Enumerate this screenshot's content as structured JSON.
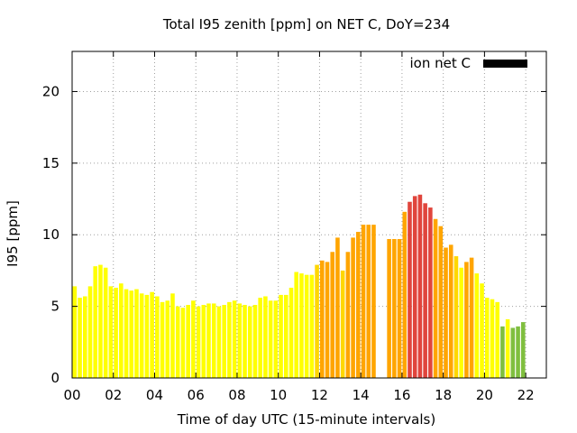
{
  "chart_data": {
    "type": "bar",
    "title": "Total I95 zenith [ppm] on NET C, DoY=234",
    "xlabel": "Time of day UTC (15-minute intervals)",
    "ylabel": "I95 [ppm]",
    "xlim": [
      0,
      23
    ],
    "ylim": [
      0,
      22.8
    ],
    "xticks": [
      "00",
      "02",
      "04",
      "06",
      "08",
      "10",
      "12",
      "14",
      "16",
      "18",
      "20",
      "22"
    ],
    "yticks": [
      "0",
      "5",
      "10",
      "15",
      "20"
    ],
    "grid": true,
    "legend": {
      "label": "ion net C",
      "color": "#000000",
      "position": "top-right"
    },
    "bar_width_hours": 0.2,
    "colors": {
      "yellow": "#ffff00",
      "amber": "#ffd700",
      "orange": "#ffa500",
      "red": "#e0453c",
      "green": "#7fbf3f",
      "yellowgreen": "#b2d235"
    },
    "bars": [
      {
        "x": 0.125,
        "y": 6.4,
        "c": "yellow"
      },
      {
        "x": 0.375,
        "y": 5.6,
        "c": "yellow"
      },
      {
        "x": 0.625,
        "y": 5.7,
        "c": "yellow"
      },
      {
        "x": 0.875,
        "y": 6.4,
        "c": "yellow"
      },
      {
        "x": 1.125,
        "y": 7.8,
        "c": "yellow"
      },
      {
        "x": 1.375,
        "y": 7.9,
        "c": "yellow"
      },
      {
        "x": 1.625,
        "y": 7.7,
        "c": "yellow"
      },
      {
        "x": 1.875,
        "y": 6.4,
        "c": "yellow"
      },
      {
        "x": 2.125,
        "y": 6.3,
        "c": "yellow"
      },
      {
        "x": 2.375,
        "y": 6.6,
        "c": "yellow"
      },
      {
        "x": 2.625,
        "y": 6.2,
        "c": "yellow"
      },
      {
        "x": 2.875,
        "y": 6.1,
        "c": "yellow"
      },
      {
        "x": 3.125,
        "y": 6.2,
        "c": "yellow"
      },
      {
        "x": 3.375,
        "y": 5.9,
        "c": "yellow"
      },
      {
        "x": 3.625,
        "y": 5.8,
        "c": "yellow"
      },
      {
        "x": 3.875,
        "y": 6.0,
        "c": "yellow"
      },
      {
        "x": 4.125,
        "y": 5.7,
        "c": "yellow"
      },
      {
        "x": 4.375,
        "y": 5.3,
        "c": "yellow"
      },
      {
        "x": 4.625,
        "y": 5.4,
        "c": "yellow"
      },
      {
        "x": 4.875,
        "y": 5.9,
        "c": "yellow"
      },
      {
        "x": 5.125,
        "y": 5.0,
        "c": "yellow"
      },
      {
        "x": 5.375,
        "y": 4.9,
        "c": "yellow"
      },
      {
        "x": 5.625,
        "y": 5.1,
        "c": "yellow"
      },
      {
        "x": 5.875,
        "y": 5.4,
        "c": "yellow"
      },
      {
        "x": 6.125,
        "y": 5.0,
        "c": "yellow"
      },
      {
        "x": 6.375,
        "y": 5.1,
        "c": "yellow"
      },
      {
        "x": 6.625,
        "y": 5.2,
        "c": "yellow"
      },
      {
        "x": 6.875,
        "y": 5.2,
        "c": "yellow"
      },
      {
        "x": 7.125,
        "y": 5.0,
        "c": "yellow"
      },
      {
        "x": 7.375,
        "y": 5.1,
        "c": "yellow"
      },
      {
        "x": 7.625,
        "y": 5.3,
        "c": "yellow"
      },
      {
        "x": 7.875,
        "y": 5.4,
        "c": "yellow"
      },
      {
        "x": 8.125,
        "y": 5.2,
        "c": "yellow"
      },
      {
        "x": 8.375,
        "y": 5.1,
        "c": "yellow"
      },
      {
        "x": 8.625,
        "y": 5.0,
        "c": "yellow"
      },
      {
        "x": 8.875,
        "y": 5.1,
        "c": "yellow"
      },
      {
        "x": 9.125,
        "y": 5.6,
        "c": "yellow"
      },
      {
        "x": 9.375,
        "y": 5.7,
        "c": "yellow"
      },
      {
        "x": 9.625,
        "y": 5.4,
        "c": "yellow"
      },
      {
        "x": 9.875,
        "y": 5.4,
        "c": "yellow"
      },
      {
        "x": 10.125,
        "y": 5.8,
        "c": "yellow"
      },
      {
        "x": 10.375,
        "y": 5.8,
        "c": "yellow"
      },
      {
        "x": 10.625,
        "y": 6.3,
        "c": "yellow"
      },
      {
        "x": 10.875,
        "y": 7.4,
        "c": "yellow"
      },
      {
        "x": 11.125,
        "y": 7.3,
        "c": "yellow"
      },
      {
        "x": 11.375,
        "y": 7.2,
        "c": "yellow"
      },
      {
        "x": 11.625,
        "y": 7.2,
        "c": "yellow"
      },
      {
        "x": 11.875,
        "y": 7.9,
        "c": "amber"
      },
      {
        "x": 12.125,
        "y": 8.2,
        "c": "orange"
      },
      {
        "x": 12.375,
        "y": 8.1,
        "c": "orange"
      },
      {
        "x": 12.625,
        "y": 8.8,
        "c": "orange"
      },
      {
        "x": 12.875,
        "y": 9.8,
        "c": "orange"
      },
      {
        "x": 13.125,
        "y": 7.5,
        "c": "amber"
      },
      {
        "x": 13.375,
        "y": 8.8,
        "c": "orange"
      },
      {
        "x": 13.625,
        "y": 9.8,
        "c": "orange"
      },
      {
        "x": 13.875,
        "y": 10.2,
        "c": "orange"
      },
      {
        "x": 14.125,
        "y": 10.7,
        "c": "orange"
      },
      {
        "x": 14.375,
        "y": 10.7,
        "c": "orange"
      },
      {
        "x": 14.625,
        "y": 10.7,
        "c": "orange"
      },
      {
        "x": 15.375,
        "y": 9.7,
        "c": "orange"
      },
      {
        "x": 15.625,
        "y": 9.7,
        "c": "orange"
      },
      {
        "x": 15.875,
        "y": 9.7,
        "c": "orange"
      },
      {
        "x": 16.125,
        "y": 11.6,
        "c": "orange"
      },
      {
        "x": 16.375,
        "y": 12.3,
        "c": "red"
      },
      {
        "x": 16.625,
        "y": 12.7,
        "c": "red"
      },
      {
        "x": 16.875,
        "y": 12.8,
        "c": "red"
      },
      {
        "x": 17.125,
        "y": 12.2,
        "c": "red"
      },
      {
        "x": 17.375,
        "y": 11.9,
        "c": "red"
      },
      {
        "x": 17.625,
        "y": 11.1,
        "c": "orange"
      },
      {
        "x": 17.875,
        "y": 10.6,
        "c": "orange"
      },
      {
        "x": 18.125,
        "y": 9.1,
        "c": "orange"
      },
      {
        "x": 18.375,
        "y": 9.3,
        "c": "orange"
      },
      {
        "x": 18.625,
        "y": 8.5,
        "c": "amber"
      },
      {
        "x": 18.875,
        "y": 7.7,
        "c": "yellow"
      },
      {
        "x": 19.125,
        "y": 8.1,
        "c": "orange"
      },
      {
        "x": 19.375,
        "y": 8.4,
        "c": "orange"
      },
      {
        "x": 19.625,
        "y": 7.3,
        "c": "yellow"
      },
      {
        "x": 19.875,
        "y": 6.6,
        "c": "yellow"
      },
      {
        "x": 20.125,
        "y": 5.6,
        "c": "yellow"
      },
      {
        "x": 20.375,
        "y": 5.5,
        "c": "yellow"
      },
      {
        "x": 20.625,
        "y": 5.3,
        "c": "yellow"
      },
      {
        "x": 20.875,
        "y": 3.6,
        "c": "green"
      },
      {
        "x": 21.125,
        "y": 4.1,
        "c": "yellow"
      },
      {
        "x": 21.375,
        "y": 3.5,
        "c": "green"
      },
      {
        "x": 21.625,
        "y": 3.6,
        "c": "green"
      },
      {
        "x": 21.875,
        "y": 3.9,
        "c": "green"
      }
    ]
  }
}
